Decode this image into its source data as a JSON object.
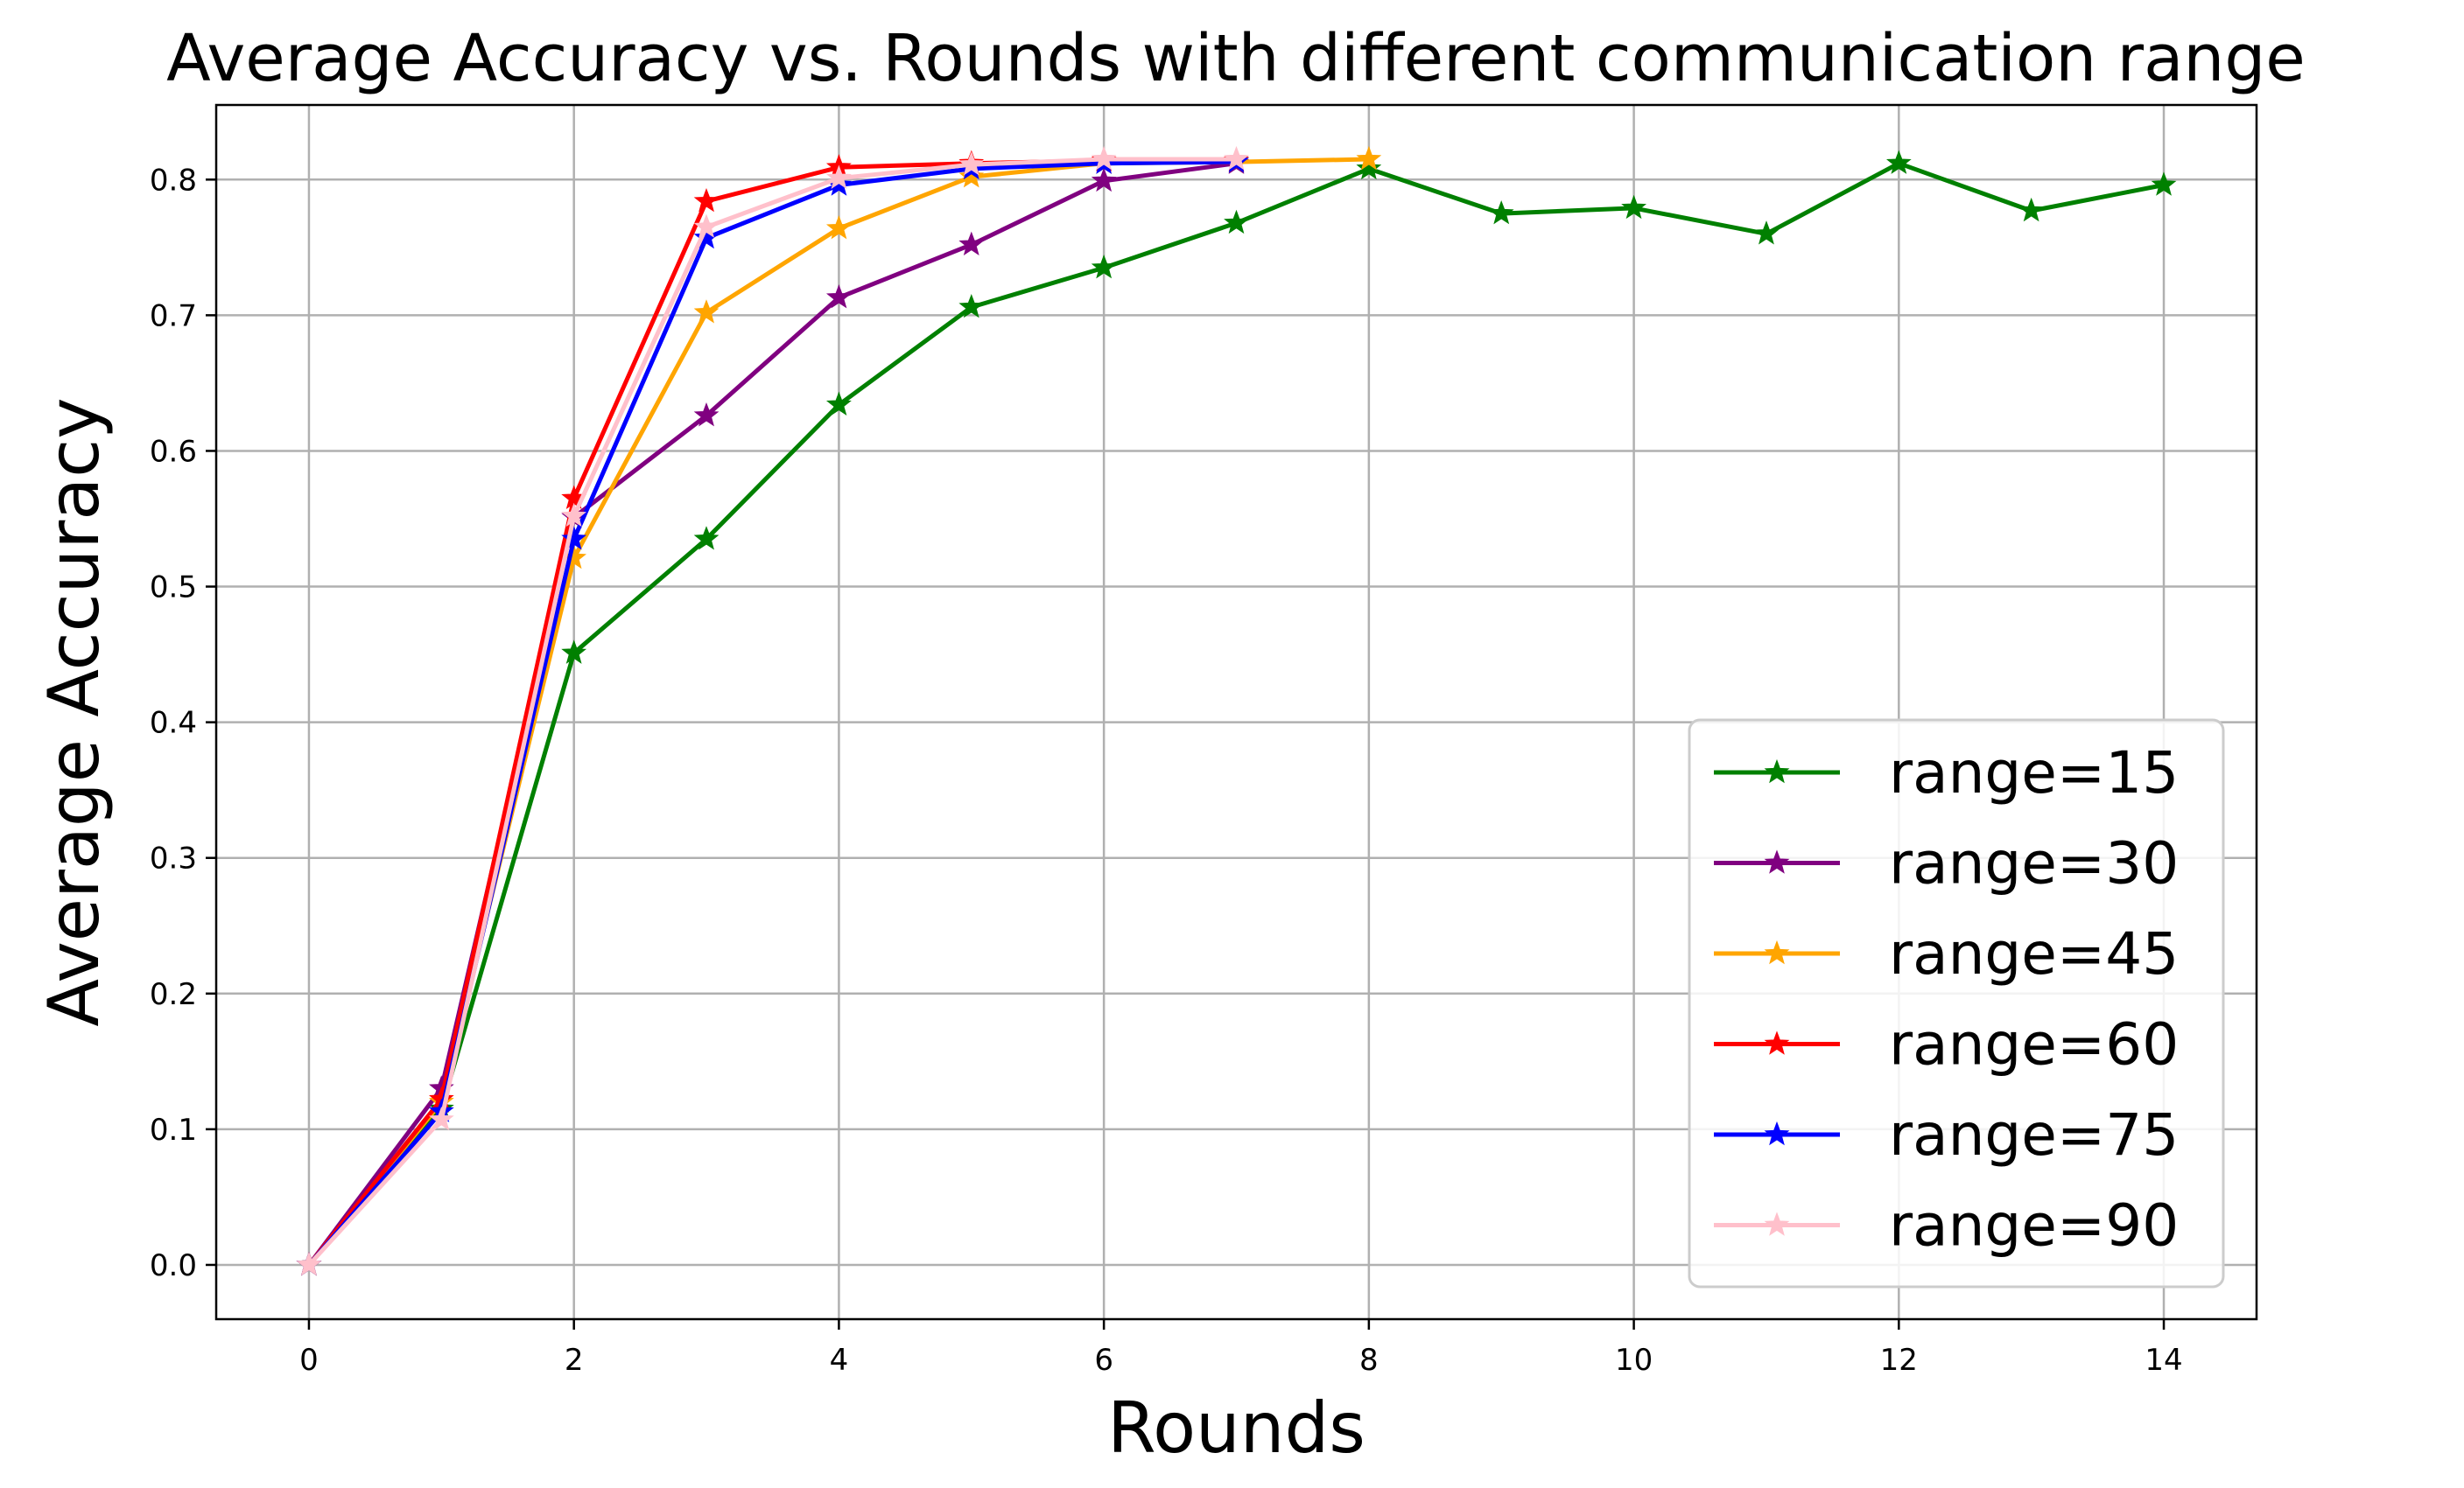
{
  "chart_data": {
    "type": "line",
    "title": "Average Accuracy vs. Rounds with different communication range",
    "xlabel": "Rounds",
    "ylabel": "Average Accuracy",
    "xlim": [
      -0.7,
      14.7
    ],
    "ylim": [
      -0.04,
      0.855
    ],
    "xticks": [
      0,
      2,
      4,
      6,
      8,
      10,
      12,
      14
    ],
    "yticks": [
      0.0,
      0.1,
      0.2,
      0.3,
      0.4,
      0.5,
      0.6,
      0.7,
      0.8
    ],
    "xtick_labels": [
      "0",
      "2",
      "4",
      "6",
      "8",
      "10",
      "12",
      "14"
    ],
    "ytick_labels": [
      "0.0",
      "0.1",
      "0.2",
      "0.3",
      "0.4",
      "0.5",
      "0.6",
      "0.7",
      "0.8"
    ],
    "grid": true,
    "legend_position": "lower-right",
    "marker": "star",
    "series": [
      {
        "name": "range=15",
        "color": "#008000",
        "x": [
          0,
          1,
          2,
          3,
          4,
          5,
          6,
          7,
          8,
          9,
          10,
          11,
          12,
          13,
          14
        ],
        "values": [
          0.0,
          0.115,
          0.451,
          0.535,
          0.634,
          0.706,
          0.735,
          0.768,
          0.808,
          0.775,
          0.779,
          0.76,
          0.812,
          0.777,
          0.796
        ]
      },
      {
        "name": "range=30",
        "color": "#800080",
        "x": [
          0,
          1,
          2,
          3,
          4,
          5,
          6,
          7
        ],
        "values": [
          0.0,
          0.13,
          0.551,
          0.626,
          0.713,
          0.752,
          0.799,
          0.812
        ]
      },
      {
        "name": "range=45",
        "color": "#FFA500",
        "x": [
          0,
          1,
          2,
          3,
          4,
          5,
          6,
          7,
          8
        ],
        "values": [
          0.0,
          0.12,
          0.521,
          0.702,
          0.764,
          0.802,
          0.812,
          0.813,
          0.815
        ]
      },
      {
        "name": "range=60",
        "color": "#FF0000",
        "x": [
          0,
          1,
          2,
          3,
          4,
          5,
          6,
          7
        ],
        "values": [
          0.0,
          0.122,
          0.565,
          0.784,
          0.809,
          0.812,
          0.814,
          0.814
        ]
      },
      {
        "name": "range=75",
        "color": "#0000FF",
        "x": [
          0,
          1,
          2,
          3,
          4,
          5,
          6,
          7
        ],
        "values": [
          0.0,
          0.113,
          0.535,
          0.757,
          0.796,
          0.808,
          0.812,
          0.813
        ]
      },
      {
        "name": "range=90",
        "color": "#FFC0CB",
        "x": [
          0,
          1,
          2,
          3,
          4,
          5,
          6,
          7
        ],
        "values": [
          0.0,
          0.107,
          0.552,
          0.765,
          0.801,
          0.811,
          0.815,
          0.815
        ]
      }
    ]
  }
}
